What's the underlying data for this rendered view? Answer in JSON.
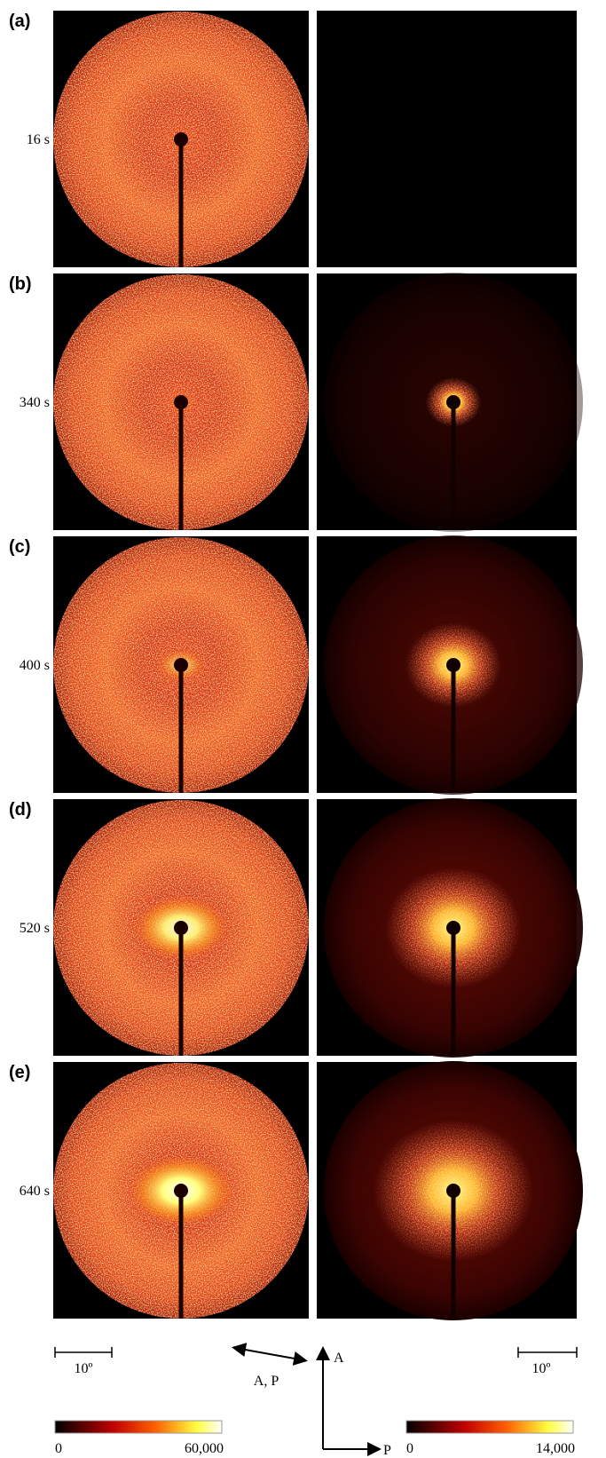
{
  "panels": [
    {
      "label": "(a)",
      "time": "16 s"
    },
    {
      "label": "(b)",
      "time": "340 s"
    },
    {
      "label": "(c)",
      "time": "400 s"
    },
    {
      "label": "(d)",
      "time": "520 s"
    },
    {
      "label": "(e)",
      "time": "640 s"
    }
  ],
  "scale_bars": {
    "left": "10º",
    "right": "10º"
  },
  "polarizers": {
    "parallel": "A, P",
    "analyzer": "A",
    "polarizer": "P"
  },
  "colorbars": [
    {
      "min": "0",
      "max": "60,000"
    },
    {
      "min": "0",
      "max": "14,000"
    }
  ]
}
